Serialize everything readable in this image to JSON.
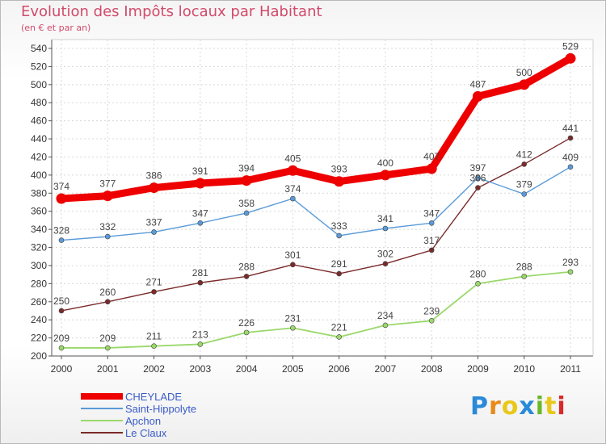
{
  "chart_data": {
    "type": "line",
    "title": "Evolution des Impôts locaux par Habitant",
    "subtitle": "(en € et par an)",
    "x": [
      "2000",
      "2001",
      "2002",
      "2003",
      "2004",
      "2005",
      "2006",
      "2007",
      "2008",
      "2009",
      "2010",
      "2011"
    ],
    "ylim": [
      200,
      540
    ],
    "yticks": [
      200,
      220,
      240,
      260,
      280,
      300,
      320,
      340,
      360,
      380,
      400,
      420,
      440,
      460,
      480,
      500,
      520,
      540
    ],
    "grid": true,
    "legend_position": "bottom-left",
    "series": [
      {
        "name": "CHEYLADE",
        "color": "#ee0000",
        "values": [
          374,
          377,
          386,
          391,
          394,
          405,
          393,
          400,
          407,
          487,
          500,
          529
        ]
      },
      {
        "name": "Saint-Hippolyte",
        "color": "#5a9ad8",
        "values": [
          328,
          332,
          337,
          347,
          358,
          374,
          333,
          341,
          347,
          397,
          379,
          409
        ]
      },
      {
        "name": "Apchon",
        "color": "#9ad86a",
        "values": [
          209,
          209,
          211,
          213,
          226,
          231,
          221,
          234,
          239,
          280,
          288,
          293
        ]
      },
      {
        "name": "Le Claux",
        "color": "#7a2a2a",
        "values": [
          250,
          260,
          271,
          281,
          288,
          301,
          291,
          302,
          317,
          386,
          412,
          441
        ]
      }
    ]
  },
  "brand": {
    "letters": [
      "P",
      "r",
      "o",
      "x",
      "i",
      "t",
      "i"
    ],
    "colors": [
      "#2a8ad8",
      "#e88a1a",
      "#e8c81a",
      "#2a8ad8",
      "#6ab82a",
      "#e8c81a",
      "#d82a2a"
    ]
  }
}
